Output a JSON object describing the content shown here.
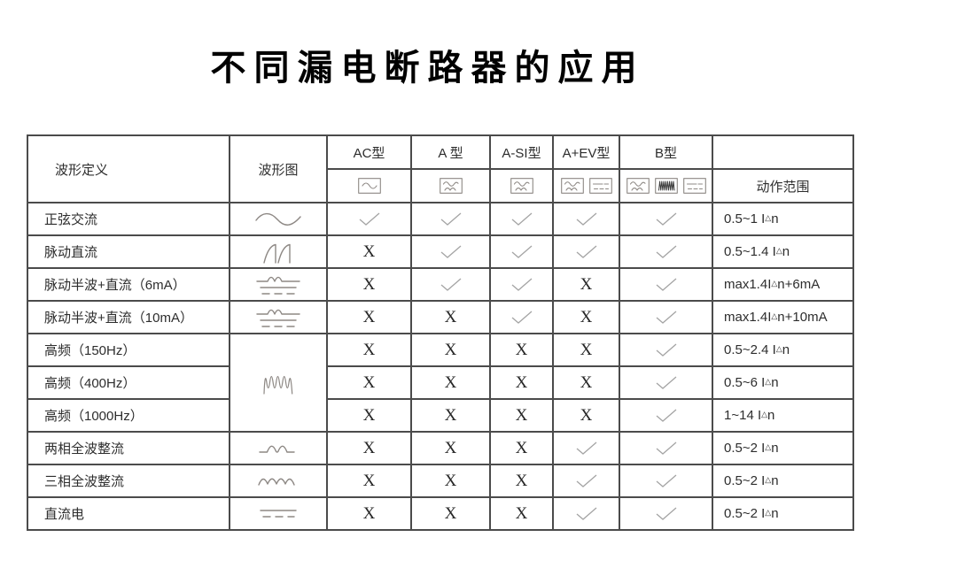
{
  "title": "不同漏电断路器的应用",
  "table": {
    "header": {
      "waveform_definition": "波形定义",
      "waveform_diagram": "波形图",
      "types": [
        {
          "label": "AC型",
          "icons": [
            "sine-box"
          ]
        },
        {
          "label": "A 型",
          "icons": [
            "a-wave-box"
          ]
        },
        {
          "label": "A-SI型",
          "icons": [
            "a-wave-box"
          ]
        },
        {
          "label": "A+EV型",
          "icons": [
            "a-wave-box",
            "dc-dash-box"
          ]
        },
        {
          "label": "B型",
          "icons": [
            "a-wave-box",
            "hf-dense-box",
            "dc-dash-box"
          ]
        }
      ],
      "range_label": "动作范围"
    },
    "rows": [
      {
        "label": "正弦交流",
        "waveform": "sine-wave",
        "waveform_rowspan": 1,
        "marks": [
          "✓",
          "✓",
          "✓",
          "✓",
          "✓"
        ],
        "range": "0.5~1 I△n"
      },
      {
        "label": "脉动直流",
        "waveform": "pulsating-dc-wave",
        "waveform_rowspan": 1,
        "marks": [
          "X",
          "✓",
          "✓",
          "✓",
          "✓"
        ],
        "range": "0.5~1.4 I△n"
      },
      {
        "label": "脉动半波+直流（6mA）",
        "waveform": "halfwave-plus-dc-wave",
        "waveform_rowspan": 1,
        "marks": [
          "X",
          "✓",
          "✓",
          "X",
          "✓"
        ],
        "range": "max1.4I△n+6mA"
      },
      {
        "label": "脉动半波+直流（10mA）",
        "waveform": "halfwave-plus-dc-wave",
        "waveform_rowspan": 1,
        "marks": [
          "X",
          "X",
          "✓",
          "X",
          "✓"
        ],
        "range": "max1.4I△n+10mA"
      },
      {
        "label": "高频（150Hz）",
        "waveform": "high-frequency-wave",
        "waveform_rowspan": 3,
        "marks": [
          "X",
          "X",
          "X",
          "X",
          "✓"
        ],
        "range": "0.5~2.4 I△n"
      },
      {
        "label": "高频（400Hz）",
        "waveform": null,
        "waveform_rowspan": 0,
        "marks": [
          "X",
          "X",
          "X",
          "X",
          "✓"
        ],
        "range": "0.5~6 I△n"
      },
      {
        "label": "高频（1000Hz）",
        "waveform": null,
        "waveform_rowspan": 0,
        "marks": [
          "X",
          "X",
          "X",
          "X",
          "✓"
        ],
        "range": "1~14 I△n"
      },
      {
        "label": "两相全波整流",
        "waveform": "two-phase-rectified-wave",
        "waveform_rowspan": 1,
        "marks": [
          "X",
          "X",
          "X",
          "✓",
          "✓"
        ],
        "range": "0.5~2 I△n"
      },
      {
        "label": "三相全波整流",
        "waveform": "three-phase-rectified-wave",
        "waveform_rowspan": 1,
        "marks": [
          "X",
          "X",
          "X",
          "✓",
          "✓"
        ],
        "range": "0.5~2 I△n"
      },
      {
        "label": "直流电",
        "waveform": "dc-line-wave",
        "waveform_rowspan": 1,
        "marks": [
          "X",
          "X",
          "X",
          "✓",
          "✓"
        ],
        "range": "0.5~2 I△n"
      }
    ],
    "colors": {
      "border": "#4b4b4b",
      "waveform_stroke": "#8d8884",
      "check": "#a4a4a4",
      "x_mark": "#262626",
      "text": "#2d2d2d"
    }
  }
}
